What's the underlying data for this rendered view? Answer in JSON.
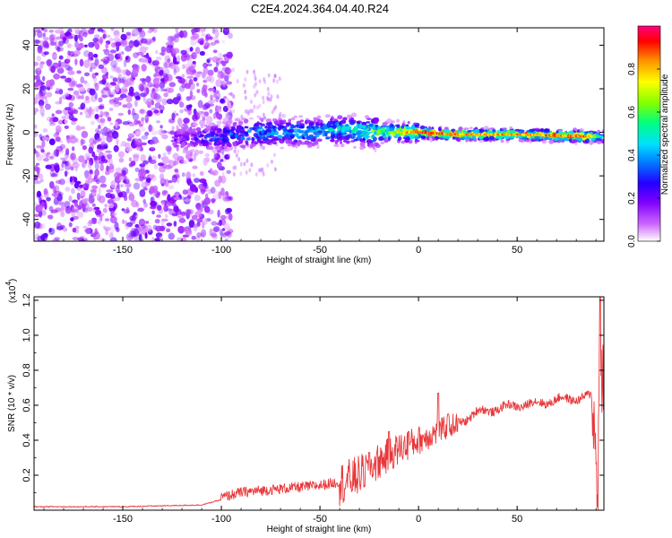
{
  "figure_title": "C2E4.2024.364.04.40.R24",
  "colors": {
    "snr_line": "#e8373a",
    "axis": "#000000",
    "background": "#ffffff",
    "colormap": [
      "#ffffff",
      "#cc66ff",
      "#8000ff",
      "#2200ff",
      "#0080ff",
      "#00e0ff",
      "#00ff80",
      "#80ff00",
      "#ffff00",
      "#ff9000",
      "#ff0000",
      "#ff0080"
    ]
  },
  "chart_data": [
    {
      "type": "heatmap",
      "title": "",
      "xlabel": "Height of straight line (km)",
      "ylabel": "Frequency (Hz)",
      "xlim": [
        -195,
        94
      ],
      "ylim": [
        -50,
        48
      ],
      "xticks": [
        -150,
        -100,
        -50,
        0,
        50
      ],
      "xtick_labels": [
        "-150",
        "-100",
        "-50",
        "0",
        "50"
      ],
      "yticks": [
        40,
        20,
        0,
        -20,
        -40
      ],
      "ytick_labels": [
        "40",
        "20",
        "0",
        "-20",
        "-40"
      ],
      "colorbar": {
        "label": "Normalized spectral amplitude",
        "range": [
          0,
          1
        ],
        "ticks": [
          0.0,
          0.2,
          0.4,
          0.6,
          0.8
        ],
        "tick_labels": [
          "0.0",
          "0.2",
          "0.4",
          "0.6",
          "0.8"
        ]
      },
      "ridge_center_hz": [
        {
          "x": -120,
          "y": -3
        },
        {
          "x": -100,
          "y": -2
        },
        {
          "x": -80,
          "y": 0
        },
        {
          "x": -60,
          "y": 0
        },
        {
          "x": -40,
          "y": 1
        },
        {
          "x": -20,
          "y": 0
        },
        {
          "x": 0,
          "y": 0
        },
        {
          "x": 20,
          "y": -1
        },
        {
          "x": 50,
          "y": -1
        },
        {
          "x": 90,
          "y": -2
        }
      ],
      "ridge_peak_amplitude": [
        {
          "x": -120,
          "y": 0.2
        },
        {
          "x": -100,
          "y": 0.35
        },
        {
          "x": -80,
          "y": 0.42
        },
        {
          "x": -50,
          "y": 0.45
        },
        {
          "x": -30,
          "y": 0.55
        },
        {
          "x": -15,
          "y": 0.7
        },
        {
          "x": 0,
          "y": 0.95
        },
        {
          "x": 30,
          "y": 0.85
        },
        {
          "x": 50,
          "y": 0.88
        },
        {
          "x": 85,
          "y": 0.92
        },
        {
          "x": 93,
          "y": 0.5
        }
      ]
    },
    {
      "type": "line",
      "title": "",
      "xlabel": "Height of straight line (km)",
      "ylabel": "SNR (10 * v/v)",
      "y_multiplier_label": "(x10",
      "y_multiplier_exp": "4",
      "y_multiplier_close": ")",
      "xlim": [
        -195,
        94
      ],
      "ylim": [
        0,
        1.22
      ],
      "xticks": [
        -150,
        -100,
        -50,
        0,
        50
      ],
      "xtick_labels": [
        "-150",
        "-100",
        "-50",
        "0",
        "50"
      ],
      "yticks": [
        0.2,
        0.4,
        0.6,
        0.8,
        1.0,
        1.2
      ],
      "ytick_labels": [
        "0.2",
        "0.4",
        "0.6",
        "0.8",
        "1.0",
        "1.2"
      ],
      "series": [
        {
          "points": [
            {
              "x": -195,
              "y": 0.02
            },
            {
              "x": -150,
              "y": 0.02
            },
            {
              "x": -110,
              "y": 0.03
            },
            {
              "x": -100,
              "y": 0.06
            },
            {
              "x": -90,
              "y": 0.09
            },
            {
              "x": -70,
              "y": 0.11
            },
            {
              "x": -50,
              "y": 0.13
            },
            {
              "x": -40,
              "y": 0.15
            },
            {
              "x": -30,
              "y": 0.2
            },
            {
              "x": -20,
              "y": 0.28
            },
            {
              "x": -10,
              "y": 0.35
            },
            {
              "x": 0,
              "y": 0.4
            },
            {
              "x": 10,
              "y": 0.45
            },
            {
              "x": 20,
              "y": 0.5
            },
            {
              "x": 30,
              "y": 0.56
            },
            {
              "x": 40,
              "y": 0.58
            },
            {
              "x": 50,
              "y": 0.6
            },
            {
              "x": 60,
              "y": 0.61
            },
            {
              "x": 70,
              "y": 0.63
            },
            {
              "x": 80,
              "y": 0.64
            },
            {
              "x": 88,
              "y": 0.65
            },
            {
              "x": 91,
              "y": 0.12
            },
            {
              "x": 92,
              "y": 1.2
            },
            {
              "x": 93,
              "y": 0.8
            }
          ],
          "spikes": [
            {
              "x": -25,
              "y": 0.33
            },
            {
              "x": -15,
              "y": 0.45
            },
            {
              "x": -5,
              "y": 0.45
            },
            {
              "x": 10,
              "y": 0.67
            },
            {
              "x": 15,
              "y": 0.55
            }
          ]
        }
      ]
    }
  ]
}
